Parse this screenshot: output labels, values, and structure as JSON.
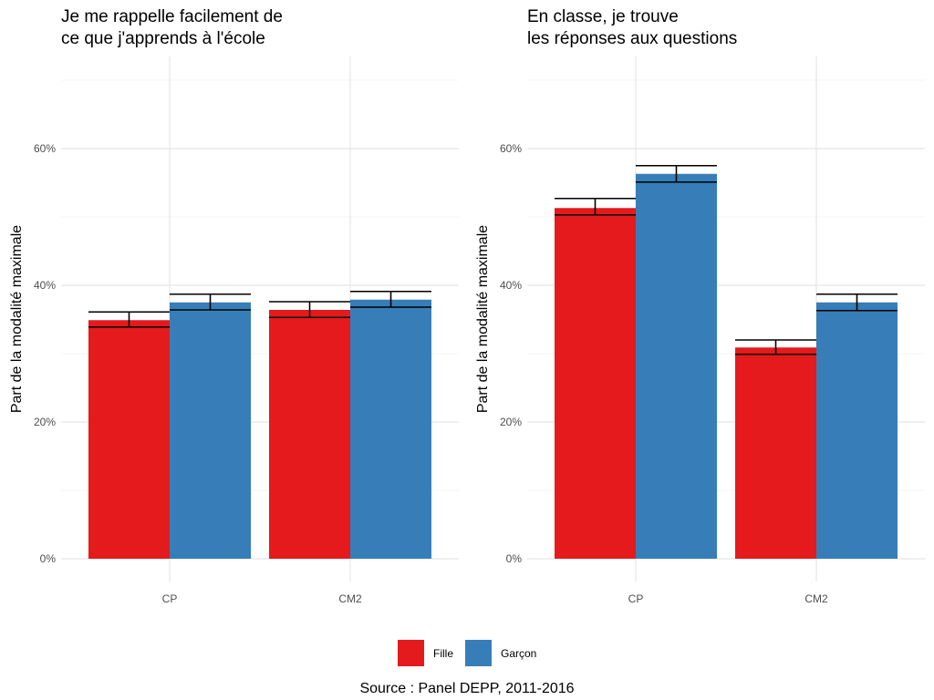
{
  "chart_data": [
    {
      "type": "bar",
      "title": [
        "Je me rappelle facilement de",
        "ce que j'apprends à l'école"
      ],
      "xlabel": "",
      "ylabel": "Part de la modalité maximale",
      "ylim": [
        0,
        70
      ],
      "yticks": [
        0,
        20,
        40,
        60
      ],
      "ytick_labels": [
        "0%",
        "20%",
        "40%",
        "60%"
      ],
      "grid": true,
      "categories": [
        "CP",
        "CM2"
      ],
      "series": [
        {
          "name": "Fille",
          "color": "#E41A1C",
          "values": [
            34.9,
            36.4
          ],
          "err_low": [
            33.9,
            35.3
          ],
          "err_high": [
            36.1,
            37.6
          ]
        },
        {
          "name": "Garçon",
          "color": "#377EB8",
          "values": [
            37.5,
            37.9
          ],
          "err_low": [
            36.4,
            36.8
          ],
          "err_high": [
            38.7,
            39.1
          ]
        }
      ]
    },
    {
      "type": "bar",
      "title": [
        "En classe, je trouve",
        "les réponses aux questions"
      ],
      "xlabel": "",
      "ylabel": "Part de la modalité maximale",
      "ylim": [
        0,
        70
      ],
      "yticks": [
        0,
        20,
        40,
        60
      ],
      "ytick_labels": [
        "0%",
        "20%",
        "40%",
        "60%"
      ],
      "grid": true,
      "categories": [
        "CP",
        "CM2"
      ],
      "series": [
        {
          "name": "Fille",
          "color": "#E41A1C",
          "values": [
            51.3,
            30.9
          ],
          "err_low": [
            50.3,
            29.9
          ],
          "err_high": [
            52.7,
            32.0
          ]
        },
        {
          "name": "Garçon",
          "color": "#377EB8",
          "values": [
            56.3,
            37.5
          ],
          "err_low": [
            55.1,
            36.3
          ],
          "err_high": [
            57.5,
            38.7
          ]
        }
      ]
    }
  ],
  "legend": {
    "position": "bottom",
    "items": [
      {
        "label": "Fille",
        "color": "#E41A1C"
      },
      {
        "label": "Garçon",
        "color": "#377EB8"
      }
    ]
  },
  "caption": "Source : Panel DEPP, 2011-2016"
}
